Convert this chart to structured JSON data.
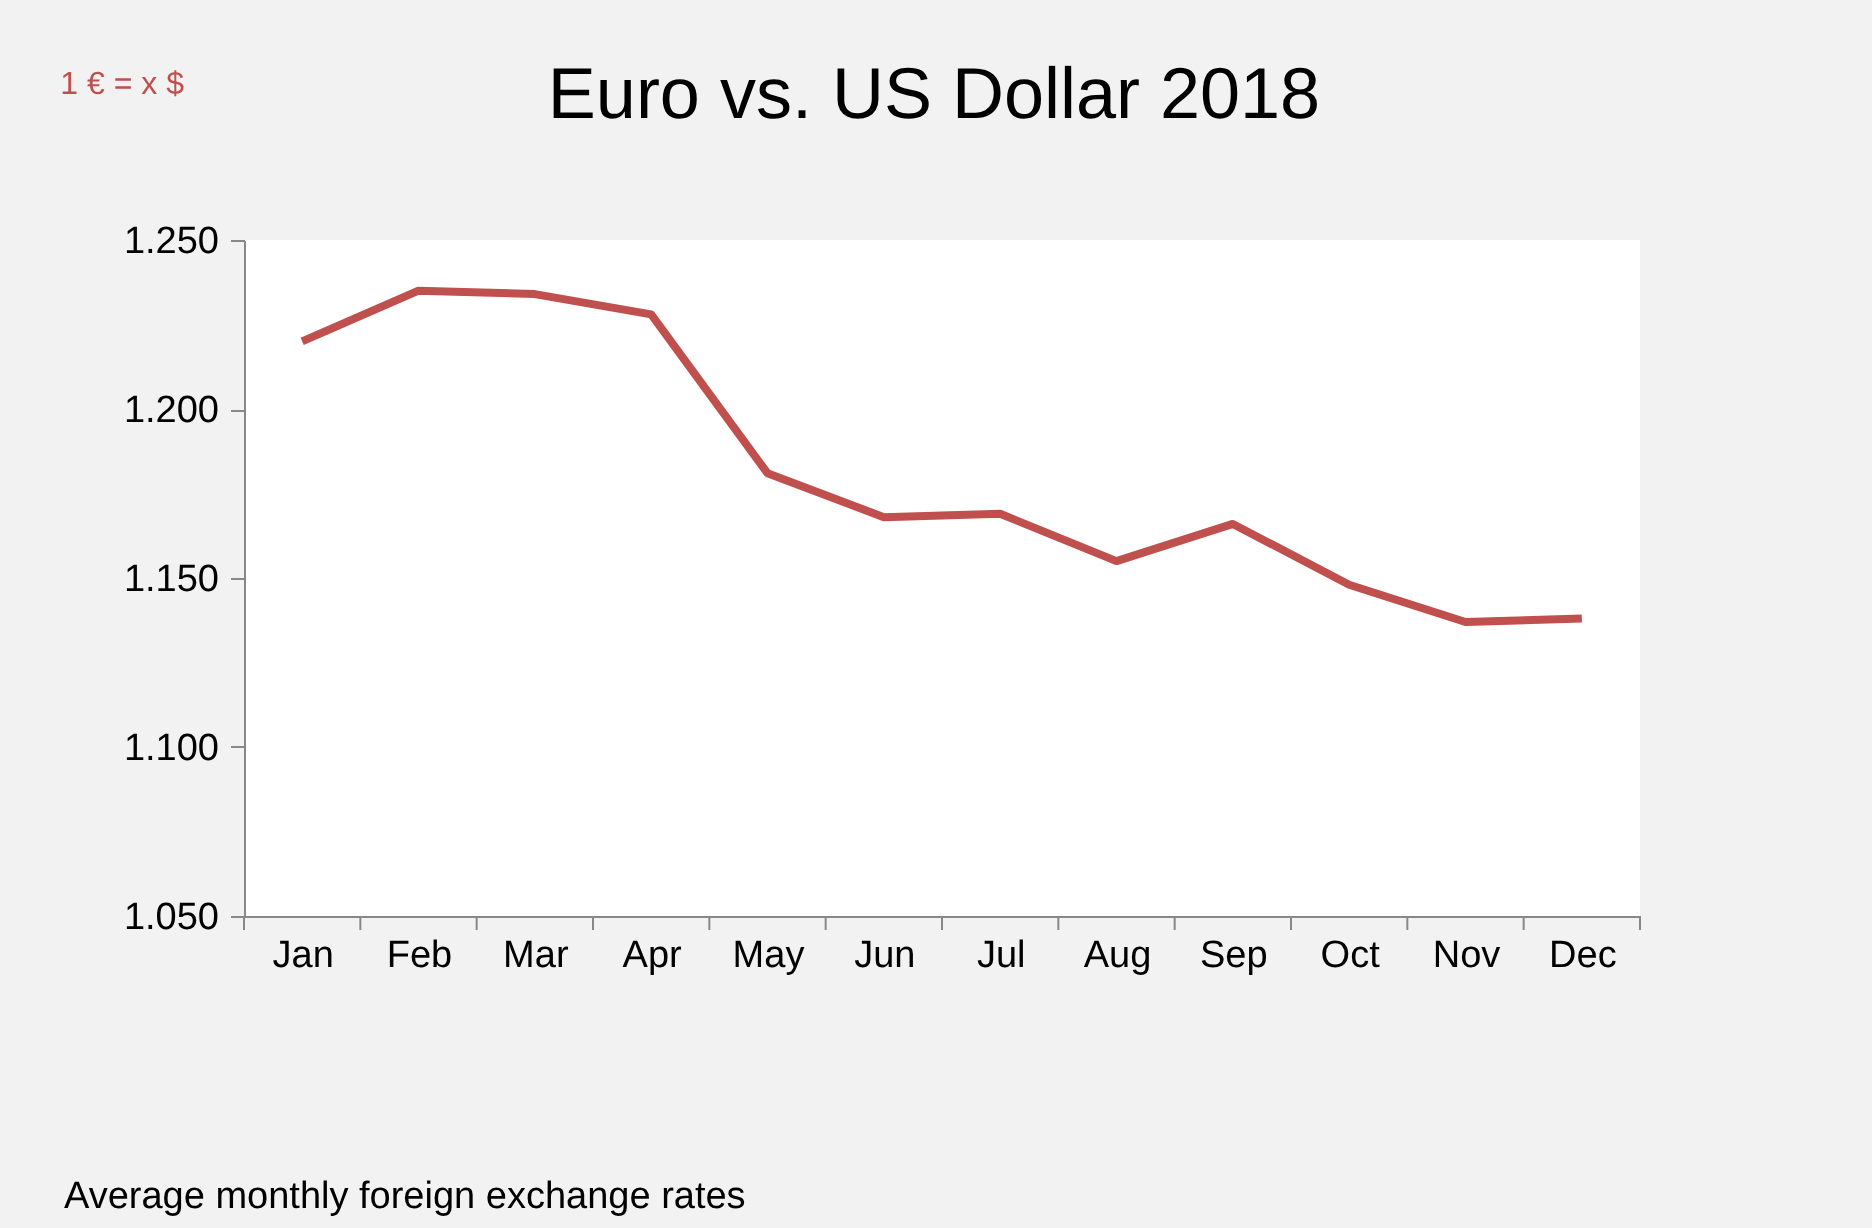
{
  "chart_data": {
    "type": "line",
    "title": "Euro vs. US Dollar 2018",
    "annotations": [
      "1 € = x $",
      "Average monthly foreign exchange rates"
    ],
    "categories": [
      "Jan",
      "Feb",
      "Mar",
      "Apr",
      "May",
      "Jun",
      "Jul",
      "Aug",
      "Sep",
      "Oct",
      "Nov",
      "Dec"
    ],
    "series": [
      {
        "color": "#c0504d",
        "values": [
          1.22,
          1.235,
          1.234,
          1.228,
          1.181,
          1.168,
          1.169,
          1.155,
          1.166,
          1.148,
          1.137,
          1.138
        ]
      }
    ],
    "ylim": [
      1.05,
      1.25
    ],
    "yticks": [
      {
        "value": 1.05,
        "label": "1.050"
      },
      {
        "value": 1.1,
        "label": "1.100"
      },
      {
        "value": 1.15,
        "label": "1.150"
      },
      {
        "value": 1.2,
        "label": "1.200"
      },
      {
        "value": 1.25,
        "label": "1.250"
      }
    ],
    "grid": false,
    "marker": "none",
    "line_style": "solid"
  }
}
